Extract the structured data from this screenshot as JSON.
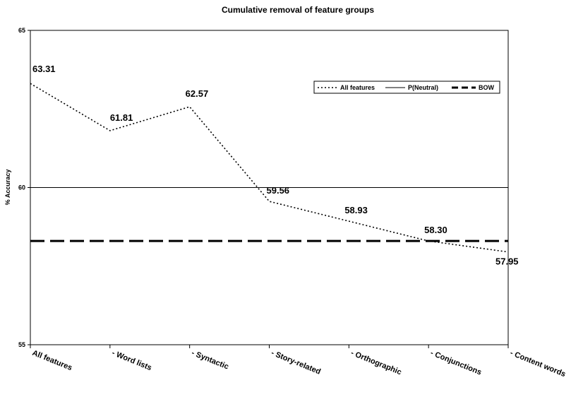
{
  "chart_data": {
    "type": "line",
    "title": "Cumulative removal of feature groups",
    "xlabel": "",
    "ylabel": "% Accuracy",
    "ylim": [
      55,
      65
    ],
    "yticks": [
      "55",
      "60",
      "65"
    ],
    "categories": [
      "All features",
      "- Word lists",
      "- Syntactic",
      "- Story-related",
      "- Orthographic",
      "- Conjunctions",
      "- Content words"
    ],
    "series": [
      {
        "name": "All features",
        "values": [
          63.31,
          61.81,
          62.57,
          59.56,
          58.93,
          58.3,
          57.95
        ],
        "style": "dotted",
        "color": "#000000"
      },
      {
        "name": "P(Neutral)",
        "values": [
          60.0,
          60.0,
          60.0,
          60.0,
          60.0,
          60.0,
          60.0
        ],
        "style": "solid",
        "color": "#000000"
      },
      {
        "name": "BOW",
        "values": [
          58.3,
          58.3,
          58.3,
          58.3,
          58.3,
          58.3,
          58.3
        ],
        "style": "dashed",
        "color": "#000000"
      }
    ],
    "data_labels": [
      "63.31",
      "61.81",
      "62.57",
      "59.56",
      "58.93",
      "58.30",
      "57.95"
    ],
    "grid": false,
    "legend_position": "top-right"
  }
}
